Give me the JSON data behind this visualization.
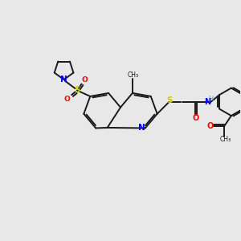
{
  "bg_color": "#e8e8e8",
  "bond_color": "#1a1a1a",
  "N_color": "#0000ff",
  "S_color": "#cccc00",
  "O_color": "#ff0000",
  "H_color": "#4aabab",
  "line_width": 1.4,
  "figsize": [
    3.0,
    3.0
  ],
  "dpi": 100,
  "xlim": [
    0,
    10
  ],
  "ylim": [
    0,
    10
  ]
}
